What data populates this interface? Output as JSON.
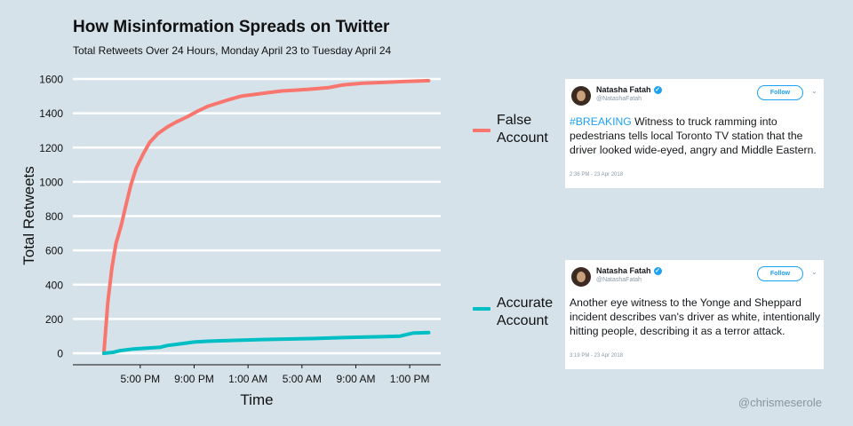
{
  "header": {
    "title": "How Misinformation Spreads on Twitter",
    "subtitle": "Total Retweets Over 24 Hours, Monday April 23 to Tuesday April 24"
  },
  "chart_data": {
    "type": "line",
    "title": "How Misinformation Spreads on Twitter",
    "subtitle": "Total Retweets Over 24 Hours, Monday April 23 to Tuesday April 24",
    "xlabel": "Time",
    "ylabel": "Total Retweets",
    "x_unit": "hours since 12:00 PM Monday April 23",
    "x_ticks": [
      {
        "value": 5,
        "label": "5:00 PM"
      },
      {
        "value": 9,
        "label": "9:00 PM"
      },
      {
        "value": 13,
        "label": "1:00 AM"
      },
      {
        "value": 17,
        "label": "5:00 AM"
      },
      {
        "value": 21,
        "label": "9:00 AM"
      },
      {
        "value": 25,
        "label": "1:00 PM"
      }
    ],
    "xlim": [
      0,
      27.3
    ],
    "ylim": [
      0,
      1600
    ],
    "y_ticks": [
      0,
      200,
      400,
      600,
      800,
      1000,
      1200,
      1400,
      1600
    ],
    "grid": "horizontal",
    "legend_position": "right",
    "series": [
      {
        "name": "False Account",
        "color": "#f8766d",
        "points": [
          [
            2.3,
            0
          ],
          [
            2.6,
            300
          ],
          [
            2.9,
            500
          ],
          [
            3.2,
            640
          ],
          [
            3.6,
            750
          ],
          [
            3.9,
            850
          ],
          [
            4.3,
            980
          ],
          [
            4.7,
            1080
          ],
          [
            5.2,
            1160
          ],
          [
            5.7,
            1230
          ],
          [
            6.3,
            1280
          ],
          [
            7.0,
            1320
          ],
          [
            7.7,
            1350
          ],
          [
            8.5,
            1380
          ],
          [
            9.2,
            1410
          ],
          [
            10.0,
            1440
          ],
          [
            10.8,
            1460
          ],
          [
            11.6,
            1480
          ],
          [
            12.5,
            1500
          ],
          [
            13.5,
            1510
          ],
          [
            14.5,
            1520
          ],
          [
            15.5,
            1530
          ],
          [
            16.5,
            1535
          ],
          [
            17.5,
            1540
          ],
          [
            19.0,
            1550
          ],
          [
            20.0,
            1565
          ],
          [
            21.5,
            1575
          ],
          [
            23.0,
            1580
          ],
          [
            24.5,
            1585
          ],
          [
            26.4,
            1590
          ]
        ]
      },
      {
        "name": "Accurate Account",
        "color": "#00bfc4",
        "points": [
          [
            2.3,
            0
          ],
          [
            3.0,
            5
          ],
          [
            3.5,
            15
          ],
          [
            4.5,
            25
          ],
          [
            5.5,
            30
          ],
          [
            6.5,
            35
          ],
          [
            7.0,
            45
          ],
          [
            8.0,
            55
          ],
          [
            9.0,
            65
          ],
          [
            10.0,
            70
          ],
          [
            12.0,
            75
          ],
          [
            14.0,
            80
          ],
          [
            16.0,
            83
          ],
          [
            18.0,
            86
          ],
          [
            19.5,
            90
          ],
          [
            21.0,
            93
          ],
          [
            22.5,
            96
          ],
          [
            23.5,
            98
          ],
          [
            24.3,
            100
          ],
          [
            24.8,
            110
          ],
          [
            25.3,
            118
          ],
          [
            26.4,
            120
          ]
        ]
      }
    ]
  },
  "tweets": [
    {
      "name": "Natasha Fatah",
      "handle": "@NatashaFatah",
      "follow": "Follow",
      "caret": "⌄",
      "verified": "✓",
      "hashtag": "#BREAKING",
      "text": " Witness to truck ramming into pedestrians tells local Toronto TV station that the driver looked wide-eyed, angry and Middle Eastern.",
      "timestamp": "2:36 PM - 23 Apr 2018"
    },
    {
      "name": "Natasha Fatah",
      "handle": "@NatashaFatah",
      "follow": "Follow",
      "caret": "⌄",
      "verified": "✓",
      "text": "Another eye witness to the Yonge and Sheppard incident describes van's driver as white, intentionally hitting people, describing it as a terror attack.",
      "timestamp": "3:19 PM - 23 Apr 2018"
    }
  ],
  "legend": [
    {
      "line1": "False",
      "line2": "Account",
      "color": "#f8766d"
    },
    {
      "line1": "Accurate",
      "line2": "Account",
      "color": "#00bfc4"
    }
  ],
  "credit": "@chrismeserole"
}
